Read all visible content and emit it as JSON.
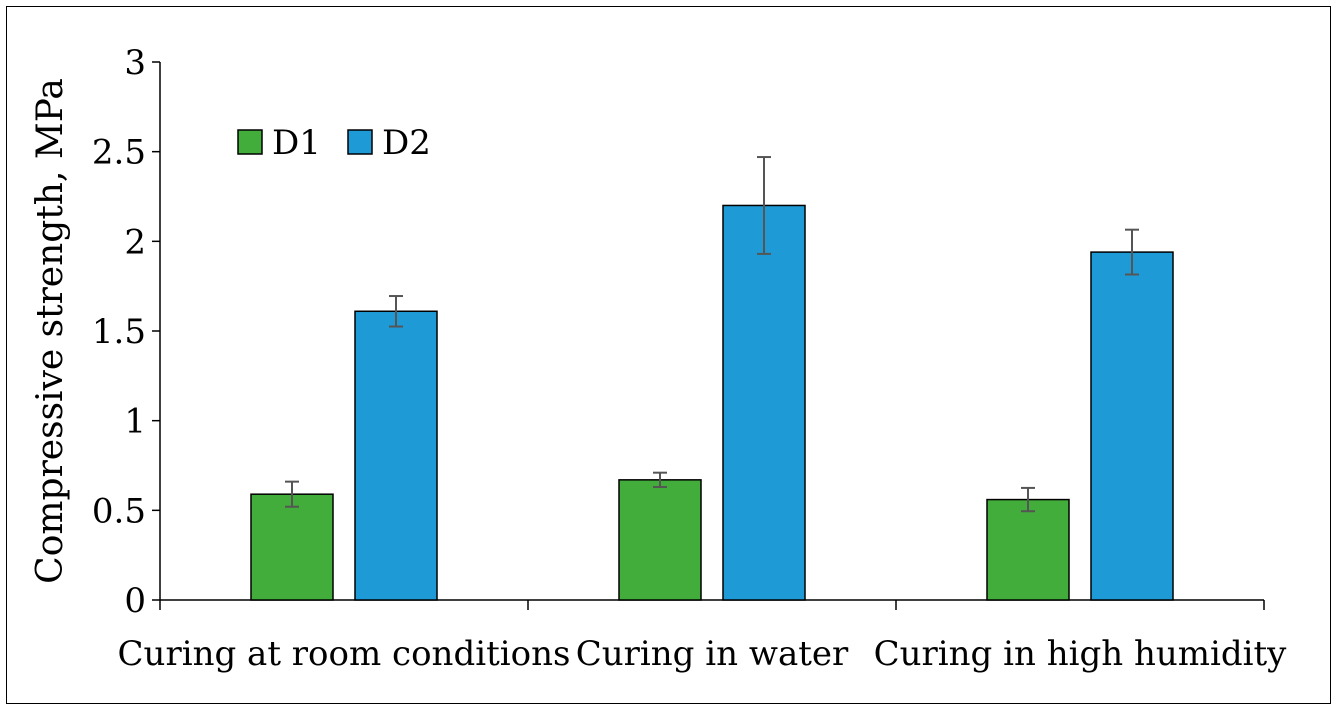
{
  "chart_data": {
    "type": "bar",
    "title": "",
    "xlabel": "",
    "ylabel": "Compressive strength, MPa",
    "ylim": [
      0,
      3
    ],
    "yticks": [
      "0",
      "0.5",
      "1",
      "1.5",
      "2",
      "2.5",
      "3"
    ],
    "categories": [
      "Curing at room conditions",
      "Curing in water",
      "Curing in high humidity"
    ],
    "series": [
      {
        "name": "D1",
        "color": "#43ad3c",
        "values": [
          0.59,
          0.67,
          0.56
        ],
        "errors": [
          0.07,
          0.04,
          0.065
        ]
      },
      {
        "name": "D2",
        "color": "#1e9bd7",
        "values": [
          1.61,
          2.2,
          1.94
        ],
        "errors": [
          0.085,
          0.27,
          0.125
        ]
      }
    ],
    "grid": false,
    "legend": "top-left",
    "error_bar_color": "#555555"
  }
}
